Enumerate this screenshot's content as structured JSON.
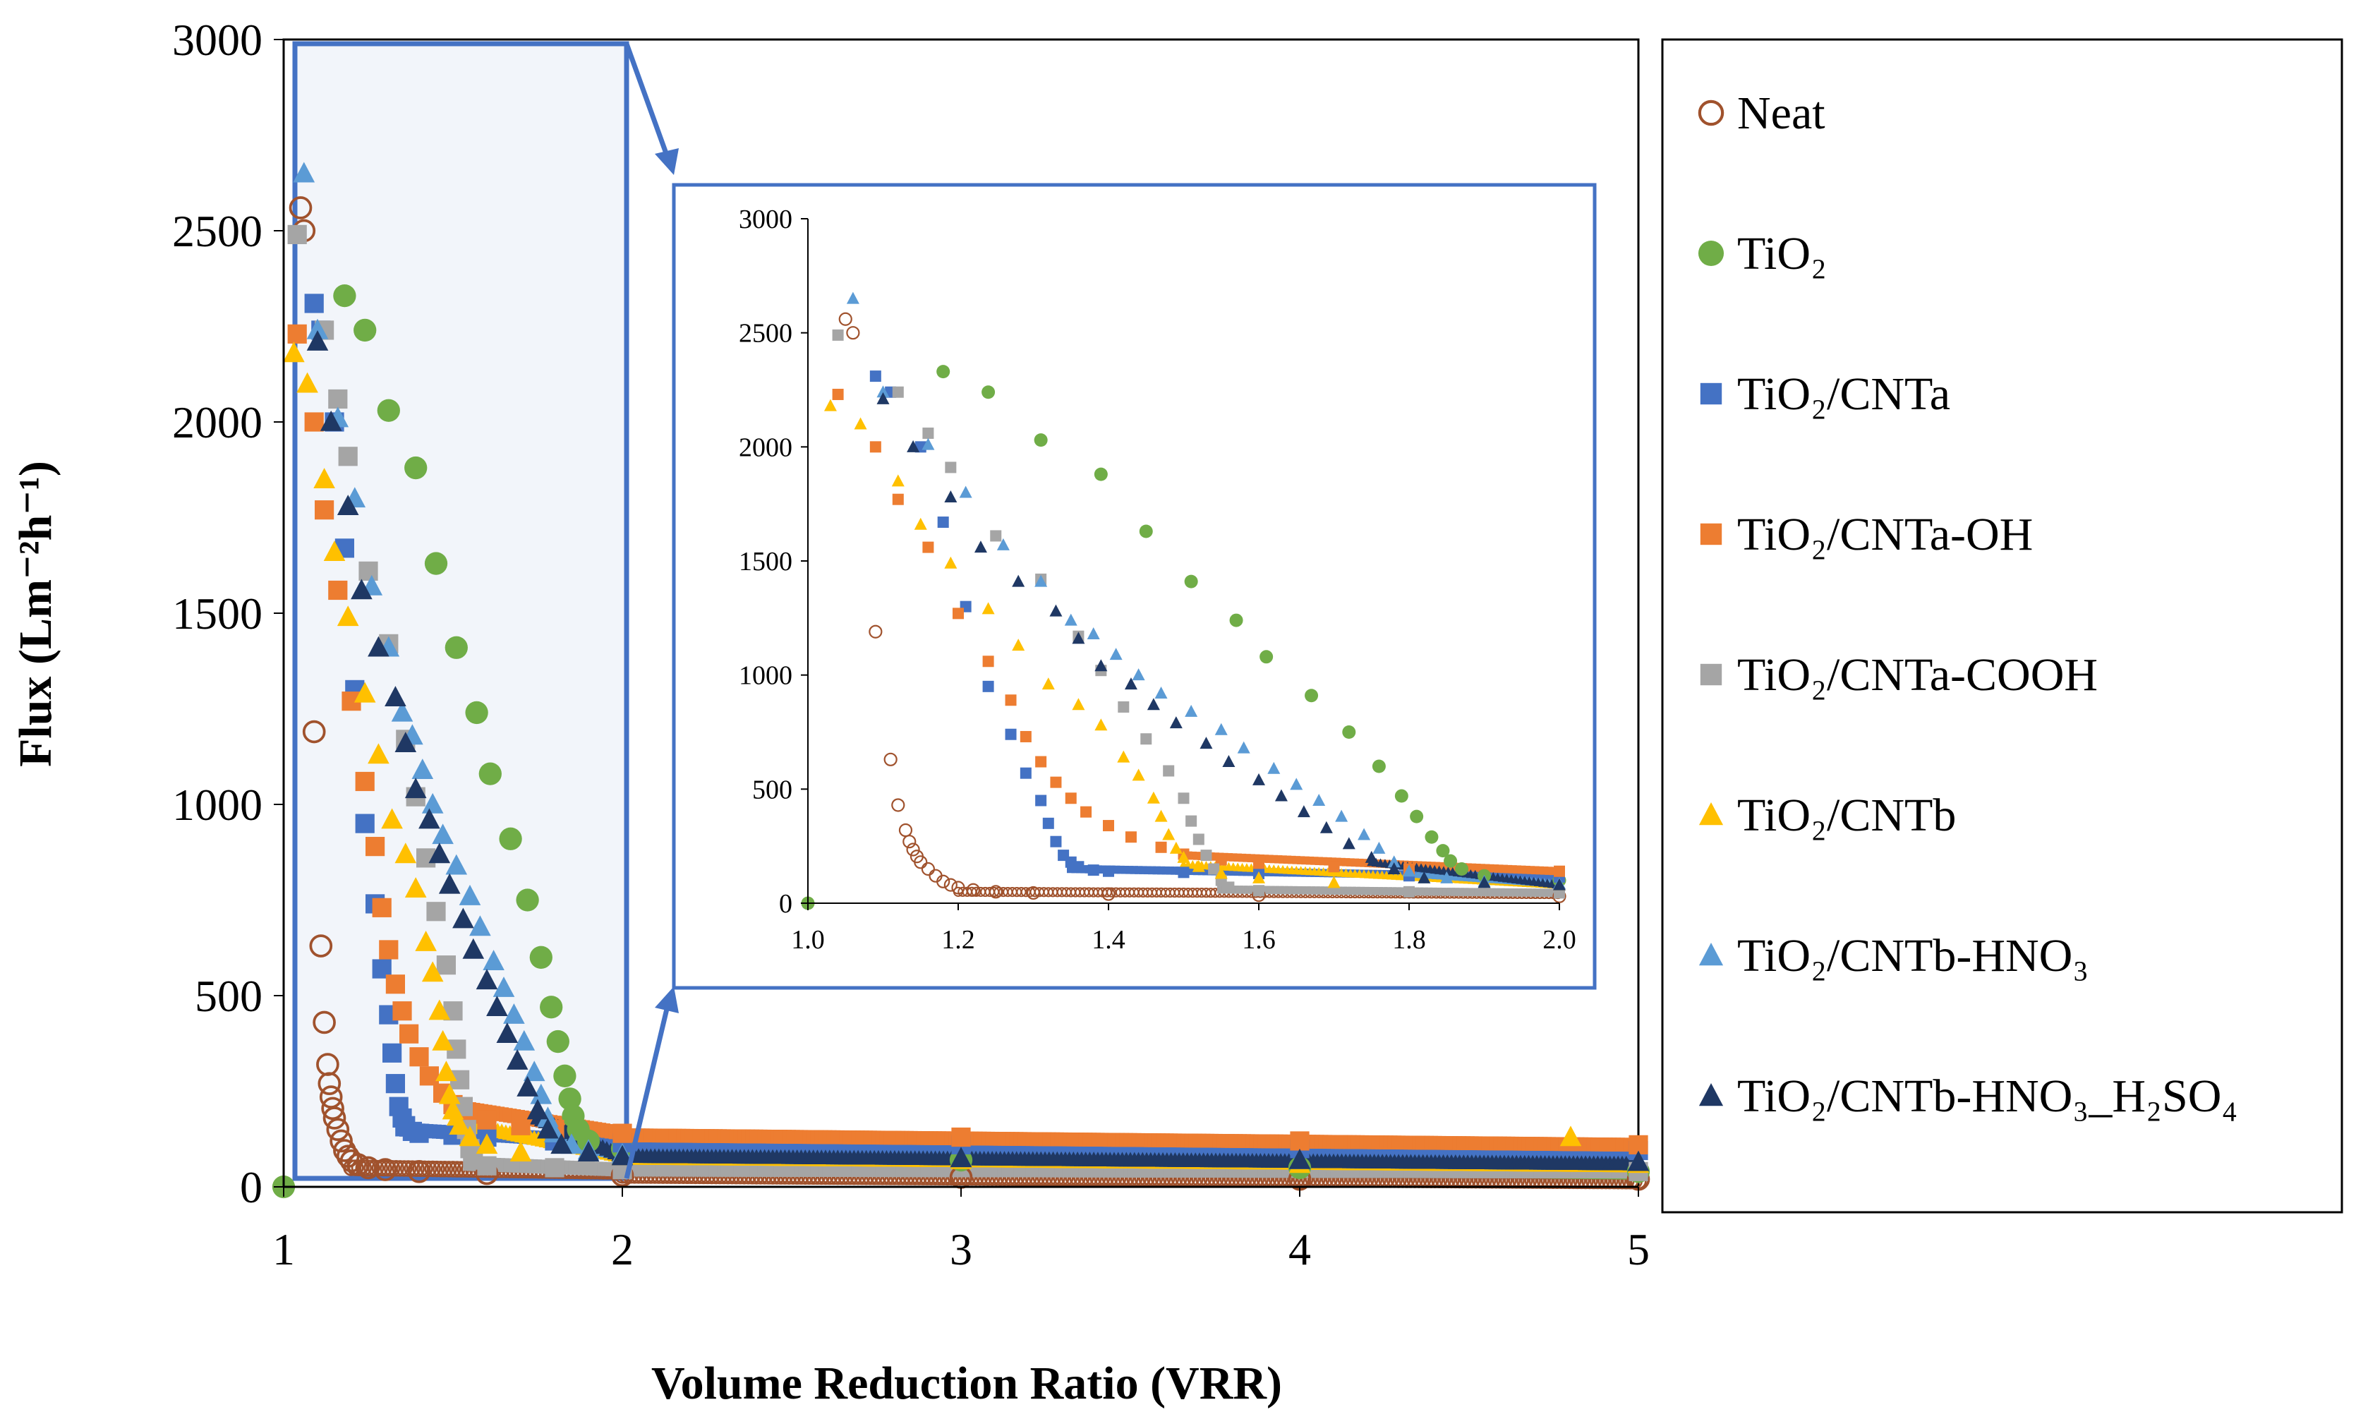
{
  "chart_data": [
    {
      "id": "main",
      "type": "scatter",
      "title": "",
      "xlabel": "Volume Reduction Ratio (VRR)",
      "ylabel": "Flux (Lm⁻²h⁻¹)",
      "xlim": [
        1,
        5
      ],
      "ylim": [
        0,
        3000
      ],
      "xticks": [
        "1",
        "2",
        "3",
        "4",
        "5"
      ],
      "yticks": [
        "0",
        "500",
        "1000",
        "1500",
        "2000",
        "2500",
        "3000"
      ],
      "zoom_region": {
        "x": [
          1,
          2
        ],
        "y": [
          0,
          3000
        ]
      },
      "legend_position": "right"
    },
    {
      "id": "inset",
      "type": "scatter",
      "title": "",
      "xlabel": "",
      "ylabel": "",
      "xlim": [
        1.0,
        2.0
      ],
      "ylim": [
        0,
        3000
      ],
      "xticks": [
        "1.0",
        "1.2",
        "1.4",
        "1.6",
        "1.8",
        "2.0"
      ],
      "yticks": [
        "0",
        "500",
        "1000",
        "1500",
        "2000",
        "2500",
        "3000"
      ]
    }
  ],
  "series": [
    {
      "name": "Neat",
      "marker": "circle-open",
      "color": "#A0522D",
      "points": [
        [
          1.05,
          2560
        ],
        [
          1.06,
          2500
        ],
        [
          1.09,
          1190
        ],
        [
          1.11,
          630
        ],
        [
          1.12,
          430
        ],
        [
          1.13,
          320
        ],
        [
          1.135,
          270
        ],
        [
          1.14,
          235
        ],
        [
          1.145,
          205
        ],
        [
          1.15,
          180
        ],
        [
          1.16,
          150
        ],
        [
          1.17,
          120
        ],
        [
          1.18,
          95
        ],
        [
          1.19,
          80
        ],
        [
          1.2,
          68
        ],
        [
          1.22,
          58
        ],
        [
          1.25,
          50
        ],
        [
          1.3,
          45
        ],
        [
          1.4,
          40
        ],
        [
          1.6,
          35
        ],
        [
          2.0,
          30
        ],
        [
          3.0,
          25
        ],
        [
          4.0,
          20
        ],
        [
          5.0,
          20
        ]
      ],
      "tail": [
        [
          1.2,
          2.0,
          50,
          40
        ],
        [
          2.0,
          5.0,
          30,
          15
        ]
      ]
    },
    {
      "name": "TiO₂",
      "marker": "circle-filled",
      "color": "#70AD47",
      "points": [
        [
          1.0,
          0
        ],
        [
          1.18,
          2330
        ],
        [
          1.24,
          2240
        ],
        [
          1.31,
          2030
        ],
        [
          1.39,
          1880
        ],
        [
          1.45,
          1630
        ],
        [
          1.51,
          1410
        ],
        [
          1.57,
          1240
        ],
        [
          1.61,
          1080
        ],
        [
          1.67,
          910
        ],
        [
          1.72,
          750
        ],
        [
          1.76,
          600
        ],
        [
          1.79,
          470
        ],
        [
          1.81,
          380
        ],
        [
          1.83,
          290
        ],
        [
          1.845,
          230
        ],
        [
          1.855,
          185
        ],
        [
          1.87,
          150
        ],
        [
          1.9,
          120
        ],
        [
          2.0,
          100
        ],
        [
          3.0,
          70
        ],
        [
          4.0,
          50
        ],
        [
          5.0,
          40
        ]
      ],
      "tail": [
        [
          1.9,
          2.0,
          120,
          100
        ],
        [
          2.0,
          5.0,
          70,
          40
        ]
      ]
    },
    {
      "name": "TiO₂/CNTa",
      "marker": "square",
      "color": "#4472C4",
      "points": [
        [
          1.09,
          2310
        ],
        [
          1.11,
          2240
        ],
        [
          1.15,
          2000
        ],
        [
          1.18,
          1670
        ],
        [
          1.21,
          1300
        ],
        [
          1.24,
          950
        ],
        [
          1.27,
          740
        ],
        [
          1.29,
          570
        ],
        [
          1.31,
          450
        ],
        [
          1.32,
          350
        ],
        [
          1.33,
          270
        ],
        [
          1.34,
          210
        ],
        [
          1.35,
          180
        ],
        [
          1.36,
          160
        ],
        [
          1.38,
          145
        ],
        [
          1.4,
          140
        ],
        [
          1.5,
          135
        ],
        [
          1.6,
          130
        ],
        [
          1.8,
          120
        ],
        [
          2.0,
          115
        ],
        [
          3.0,
          110
        ],
        [
          4.0,
          100
        ],
        [
          5.0,
          95
        ]
      ],
      "tail": [
        [
          1.35,
          2.0,
          150,
          115
        ],
        [
          2.0,
          5.0,
          110,
          90
        ]
      ]
    },
    {
      "name": "TiO₂/CNTa-OH",
      "marker": "square",
      "color": "#ED7D31",
      "points": [
        [
          1.04,
          2230
        ],
        [
          1.09,
          2000
        ],
        [
          1.12,
          1770
        ],
        [
          1.16,
          1560
        ],
        [
          1.2,
          1270
        ],
        [
          1.24,
          1060
        ],
        [
          1.27,
          890
        ],
        [
          1.29,
          730
        ],
        [
          1.31,
          620
        ],
        [
          1.33,
          530
        ],
        [
          1.35,
          460
        ],
        [
          1.37,
          400
        ],
        [
          1.4,
          340
        ],
        [
          1.43,
          290
        ],
        [
          1.47,
          245
        ],
        [
          1.5,
          215
        ],
        [
          1.55,
          190
        ],
        [
          1.6,
          175
        ],
        [
          1.7,
          160
        ],
        [
          1.8,
          150
        ],
        [
          2.0,
          140
        ],
        [
          3.0,
          130
        ],
        [
          4.0,
          120
        ],
        [
          5.0,
          110
        ]
      ],
      "tail": [
        [
          1.5,
          2.0,
          210,
          140
        ],
        [
          2.0,
          5.0,
          135,
          110
        ]
      ]
    },
    {
      "name": "TiO₂/CNTa-COOH",
      "marker": "square",
      "color": "#A5A5A5",
      "points": [
        [
          1.04,
          2490
        ],
        [
          1.12,
          2240
        ],
        [
          1.16,
          2060
        ],
        [
          1.19,
          1910
        ],
        [
          1.25,
          1610
        ],
        [
          1.31,
          1420
        ],
        [
          1.36,
          1170
        ],
        [
          1.39,
          1020
        ],
        [
          1.42,
          860
        ],
        [
          1.45,
          720
        ],
        [
          1.48,
          580
        ],
        [
          1.5,
          460
        ],
        [
          1.51,
          360
        ],
        [
          1.52,
          280
        ],
        [
          1.53,
          210
        ],
        [
          1.54,
          150
        ],
        [
          1.55,
          100
        ],
        [
          1.56,
          70
        ],
        [
          1.6,
          55
        ],
        [
          1.8,
          50
        ],
        [
          2.0,
          45
        ],
        [
          5.0,
          40
        ]
      ],
      "tail": [
        [
          1.55,
          2.0,
          60,
          45
        ],
        [
          2.0,
          5.0,
          45,
          40
        ]
      ]
    },
    {
      "name": "TiO₂/CNTb",
      "marker": "triangle",
      "color": "#FFC000",
      "points": [
        [
          1.03,
          2180
        ],
        [
          1.07,
          2100
        ],
        [
          1.12,
          1850
        ],
        [
          1.15,
          1660
        ],
        [
          1.19,
          1490
        ],
        [
          1.24,
          1290
        ],
        [
          1.28,
          1130
        ],
        [
          1.32,
          960
        ],
        [
          1.36,
          870
        ],
        [
          1.39,
          780
        ],
        [
          1.42,
          640
        ],
        [
          1.44,
          560
        ],
        [
          1.46,
          460
        ],
        [
          1.47,
          380
        ],
        [
          1.48,
          300
        ],
        [
          1.49,
          240
        ],
        [
          1.5,
          200
        ],
        [
          1.52,
          160
        ],
        [
          1.55,
          130
        ],
        [
          1.6,
          110
        ],
        [
          1.7,
          90
        ],
        [
          2.0,
          80
        ],
        [
          3.0,
          70
        ],
        [
          4.0,
          60
        ],
        [
          4.8,
          130
        ],
        [
          5.0,
          60
        ]
      ],
      "tail": [
        [
          1.5,
          2.0,
          170,
          80
        ],
        [
          2.0,
          5.0,
          75,
          55
        ]
      ]
    },
    {
      "name": "TiO₂/CNTb-HNO₃",
      "marker": "triangle",
      "color": "#5B9BD5",
      "points": [
        [
          1.06,
          2650
        ],
        [
          1.1,
          2240
        ],
        [
          1.16,
          2010
        ],
        [
          1.21,
          1800
        ],
        [
          1.26,
          1570
        ],
        [
          1.31,
          1410
        ],
        [
          1.35,
          1240
        ],
        [
          1.38,
          1180
        ],
        [
          1.41,
          1090
        ],
        [
          1.44,
          1000
        ],
        [
          1.47,
          920
        ],
        [
          1.51,
          840
        ],
        [
          1.55,
          760
        ],
        [
          1.58,
          680
        ],
        [
          1.62,
          590
        ],
        [
          1.65,
          520
        ],
        [
          1.68,
          450
        ],
        [
          1.71,
          380
        ],
        [
          1.74,
          300
        ],
        [
          1.76,
          240
        ],
        [
          1.78,
          180
        ],
        [
          1.8,
          140
        ],
        [
          1.85,
          110
        ],
        [
          1.9,
          95
        ],
        [
          2.0,
          85
        ],
        [
          3.0,
          75
        ],
        [
          4.0,
          70
        ],
        [
          5.0,
          65
        ]
      ],
      "tail": [
        [
          1.8,
          2.0,
          130,
          85
        ],
        [
          2.0,
          5.0,
          80,
          60
        ]
      ]
    },
    {
      "name": "TiO₂/CNTb-HNO₃_H₂SO₄",
      "marker": "triangle",
      "color": "#1F3864",
      "points": [
        [
          1.1,
          2210
        ],
        [
          1.14,
          2000
        ],
        [
          1.19,
          1780
        ],
        [
          1.23,
          1560
        ],
        [
          1.28,
          1410
        ],
        [
          1.33,
          1280
        ],
        [
          1.36,
          1160
        ],
        [
          1.39,
          1040
        ],
        [
          1.43,
          960
        ],
        [
          1.46,
          870
        ],
        [
          1.49,
          790
        ],
        [
          1.53,
          700
        ],
        [
          1.56,
          620
        ],
        [
          1.6,
          540
        ],
        [
          1.63,
          470
        ],
        [
          1.66,
          400
        ],
        [
          1.69,
          330
        ],
        [
          1.72,
          260
        ],
        [
          1.75,
          200
        ],
        [
          1.78,
          150
        ],
        [
          1.82,
          110
        ],
        [
          1.9,
          90
        ],
        [
          2.0,
          80
        ],
        [
          3.0,
          75
        ],
        [
          4.0,
          70
        ],
        [
          5.0,
          65
        ]
      ],
      "tail": [
        [
          1.75,
          2.0,
          180,
          80
        ],
        [
          2.0,
          5.0,
          80,
          60
        ]
      ]
    }
  ]
}
